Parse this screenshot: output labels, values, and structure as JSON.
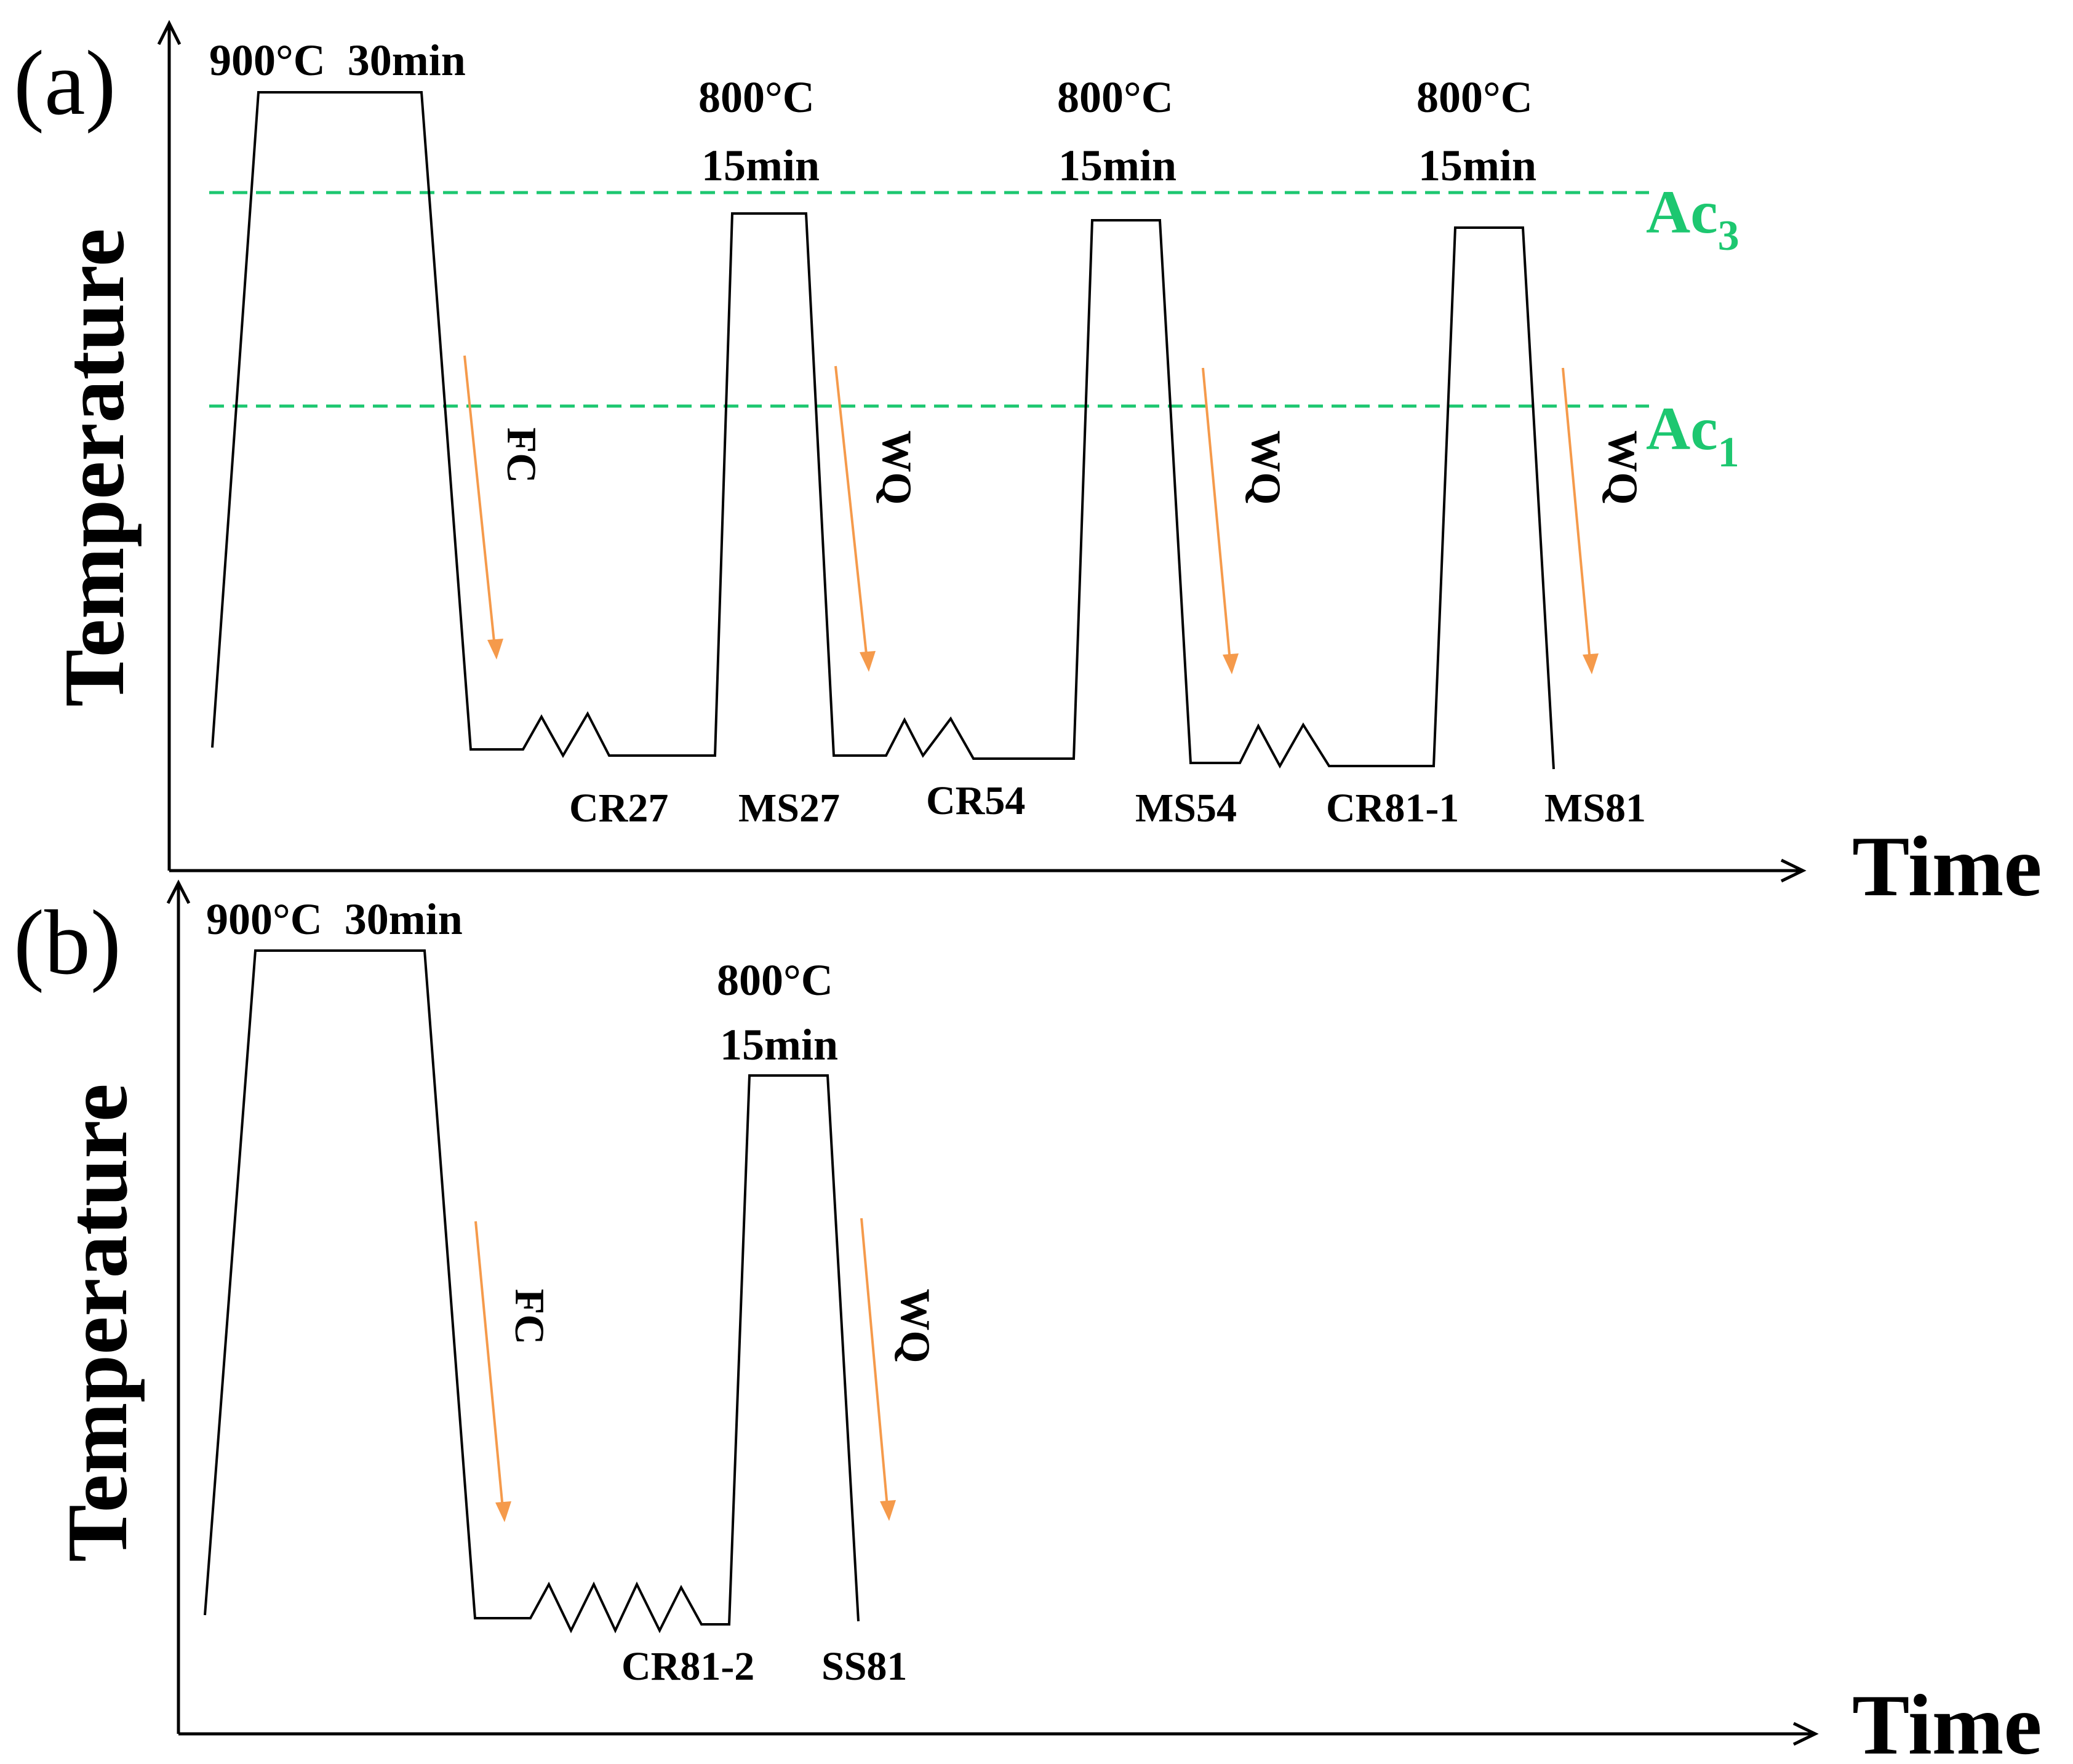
{
  "panel_a": {
    "label": "(a)",
    "y_axis": "Temperature",
    "x_axis": "Time",
    "austenitize": "900°C  30min",
    "step_temp": "800°C",
    "step_time": "15min",
    "critical_lines": [
      {
        "name": "Ac",
        "sub": "3"
      },
      {
        "name": "Ac",
        "sub": "1"
      }
    ],
    "cooling": [
      "FC",
      "WQ",
      "WQ",
      "WQ"
    ],
    "samples": [
      "CR27",
      "MS27",
      "CR54",
      "MS54",
      "CR81-1",
      "MS81"
    ]
  },
  "panel_b": {
    "label": "(b)",
    "y_axis": "Temperature",
    "x_axis": "Time",
    "austenitize": "900°C  30min",
    "step_temp": "800°C",
    "step_time": "15min",
    "cooling": [
      "FC",
      "WQ"
    ],
    "samples": [
      "CR81-2",
      "SS81"
    ]
  },
  "colors": {
    "critical_line": "#1dc770",
    "cooling_arrow": "#f59a4b",
    "curve": "#000000"
  }
}
